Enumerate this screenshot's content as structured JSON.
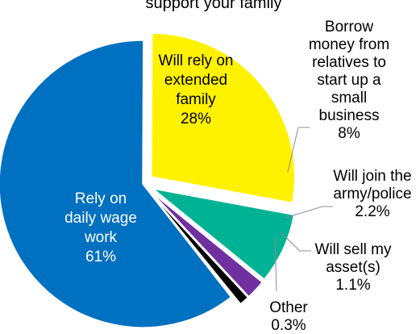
{
  "chart_data": {
    "type": "pie",
    "title_fragment": "support your family",
    "slices": [
      {
        "label": [
          "Rely on",
          "daily wage",
          "work",
          "61%"
        ],
        "value": 61,
        "color": "#0070C0",
        "text_color": "#ffffff",
        "exploded": false,
        "callout": false
      },
      {
        "label": [
          "Will rely on",
          "extended",
          "family",
          "28%"
        ],
        "value": 28,
        "color": "#FFF200",
        "text_color": "#000000",
        "exploded": true,
        "callout": false
      },
      {
        "label": [
          "Borrow",
          "money from",
          "relatives to",
          "start up a",
          "small",
          "business",
          "8%"
        ],
        "value": 8,
        "color": "#00B294",
        "text_color": "#000000",
        "exploded": true,
        "callout": true
      },
      {
        "label": [
          "Will join the",
          "army/police",
          "2.2%"
        ],
        "value": 2.2,
        "color": "#7030A0",
        "text_color": "#000000",
        "exploded": true,
        "callout": true
      },
      {
        "label": [
          "Will sell my",
          "asset(s)",
          "1.1%"
        ],
        "value": 1.1,
        "color": "#000000",
        "text_color": "#000000",
        "exploded": true,
        "callout": true
      },
      {
        "label": [
          "Other",
          "0.3%"
        ],
        "value": 0.3,
        "color": "#ffffff",
        "text_color": "#000000",
        "exploded": true,
        "callout": true
      }
    ],
    "legend": "none"
  }
}
